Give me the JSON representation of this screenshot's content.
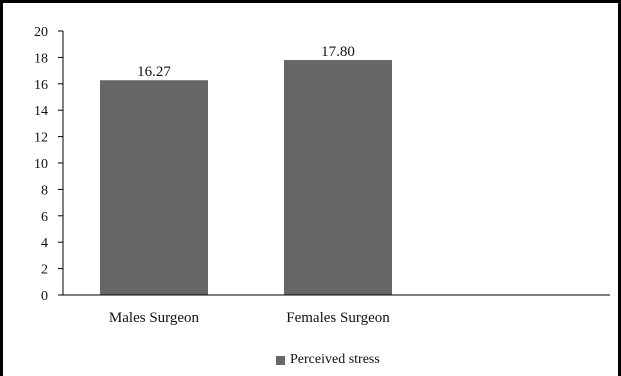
{
  "chart_data": {
    "type": "bar",
    "categories": [
      "Males Surgeon",
      "Females Surgeon"
    ],
    "series": [
      {
        "name": "Perceived stress",
        "values": [
          16.27,
          17.8
        ],
        "color": "#666666"
      }
    ],
    "data_labels": [
      "16.27",
      "17.80"
    ],
    "y_ticks": [
      0,
      2,
      4,
      6,
      8,
      10,
      12,
      14,
      16,
      18,
      20
    ],
    "ylim": [
      0,
      20
    ],
    "title": "",
    "xlabel": "",
    "ylabel": "",
    "grid": false,
    "legend_position": "bottom"
  }
}
